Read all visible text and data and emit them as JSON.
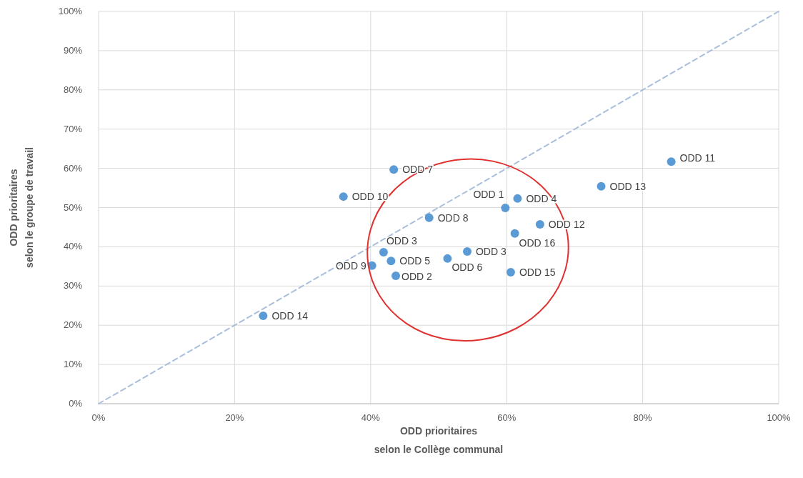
{
  "chart_data": {
    "type": "scatter",
    "xlabel": "ODD prioritaires\nselon le Collège communal",
    "ylabel": "ODD prioritaires\nselon le groupe de travail",
    "xlim": [
      0,
      100
    ],
    "ylim": [
      0,
      100
    ],
    "xticks": [
      {
        "value": 0,
        "label": "0%"
      },
      {
        "value": 20,
        "label": "20%"
      },
      {
        "value": 40,
        "label": "40%"
      },
      {
        "value": 60,
        "label": "60%"
      },
      {
        "value": 80,
        "label": "80%"
      },
      {
        "value": 100,
        "label": "100%"
      }
    ],
    "yticks": [
      {
        "value": 0,
        "label": "0%"
      },
      {
        "value": 10,
        "label": "10%"
      },
      {
        "value": 20,
        "label": "20%"
      },
      {
        "value": 30,
        "label": "30%"
      },
      {
        "value": 40,
        "label": "40%"
      },
      {
        "value": 50,
        "label": "50%"
      },
      {
        "value": 60,
        "label": "60%"
      },
      {
        "value": 70,
        "label": "70%"
      },
      {
        "value": 80,
        "label": "80%"
      },
      {
        "value": 90,
        "label": "90%"
      },
      {
        "value": 100,
        "label": "100%"
      }
    ],
    "grid": true,
    "series": [
      {
        "type": "line",
        "color": "#a9bfdc",
        "line_style": "dashed",
        "marker": "none",
        "x": [
          0,
          100
        ],
        "values": [
          0,
          100
        ]
      },
      {
        "color": "#5b9bd5",
        "marker": "circle",
        "x": [
          43.4,
          36.0,
          59.8,
          61.6,
          48.6,
          64.9,
          61.2,
          41.9,
          54.2,
          43.0,
          51.3,
          40.2,
          43.7,
          60.6,
          73.9,
          84.2,
          24.2
        ],
        "values": [
          59.7,
          52.8,
          49.9,
          52.3,
          47.4,
          45.7,
          43.4,
          38.6,
          38.8,
          36.4,
          37.0,
          35.2,
          32.6,
          33.5,
          55.4,
          61.7,
          22.4
        ]
      }
    ],
    "annotations": [
      {
        "text": "ODD 7",
        "x": 43.4,
        "y": 59.7
      },
      {
        "text": "ODD 10",
        "x": 36.0,
        "y": 52.8
      },
      {
        "text": "ODD 1",
        "x": 59.8,
        "y": 49.9
      },
      {
        "text": "ODD 4",
        "x": 61.6,
        "y": 52.3
      },
      {
        "text": "ODD 8",
        "x": 48.6,
        "y": 47.4
      },
      {
        "text": "ODD 12",
        "x": 64.9,
        "y": 45.7
      },
      {
        "text": "ODD 16",
        "x": 61.2,
        "y": 43.4
      },
      {
        "text": "ODD 3",
        "x": 41.9,
        "y": 38.6
      },
      {
        "text": "ODD 3",
        "x": 54.2,
        "y": 38.8
      },
      {
        "text": "ODD 5",
        "x": 43.0,
        "y": 36.4
      },
      {
        "text": "ODD 6",
        "x": 51.3,
        "y": 37.0
      },
      {
        "text": "ODD 9",
        "x": 40.2,
        "y": 35.2
      },
      {
        "text": "ODD 2",
        "x": 43.7,
        "y": 32.6
      },
      {
        "text": "ODD 15",
        "x": 60.6,
        "y": 33.5
      },
      {
        "text": "ODD 13",
        "x": 73.9,
        "y": 55.4
      },
      {
        "text": "ODD 11",
        "x": 84.2,
        "y": 61.7
      },
      {
        "text": "ODD 14",
        "x": 24.2,
        "y": 22.4
      }
    ]
  }
}
